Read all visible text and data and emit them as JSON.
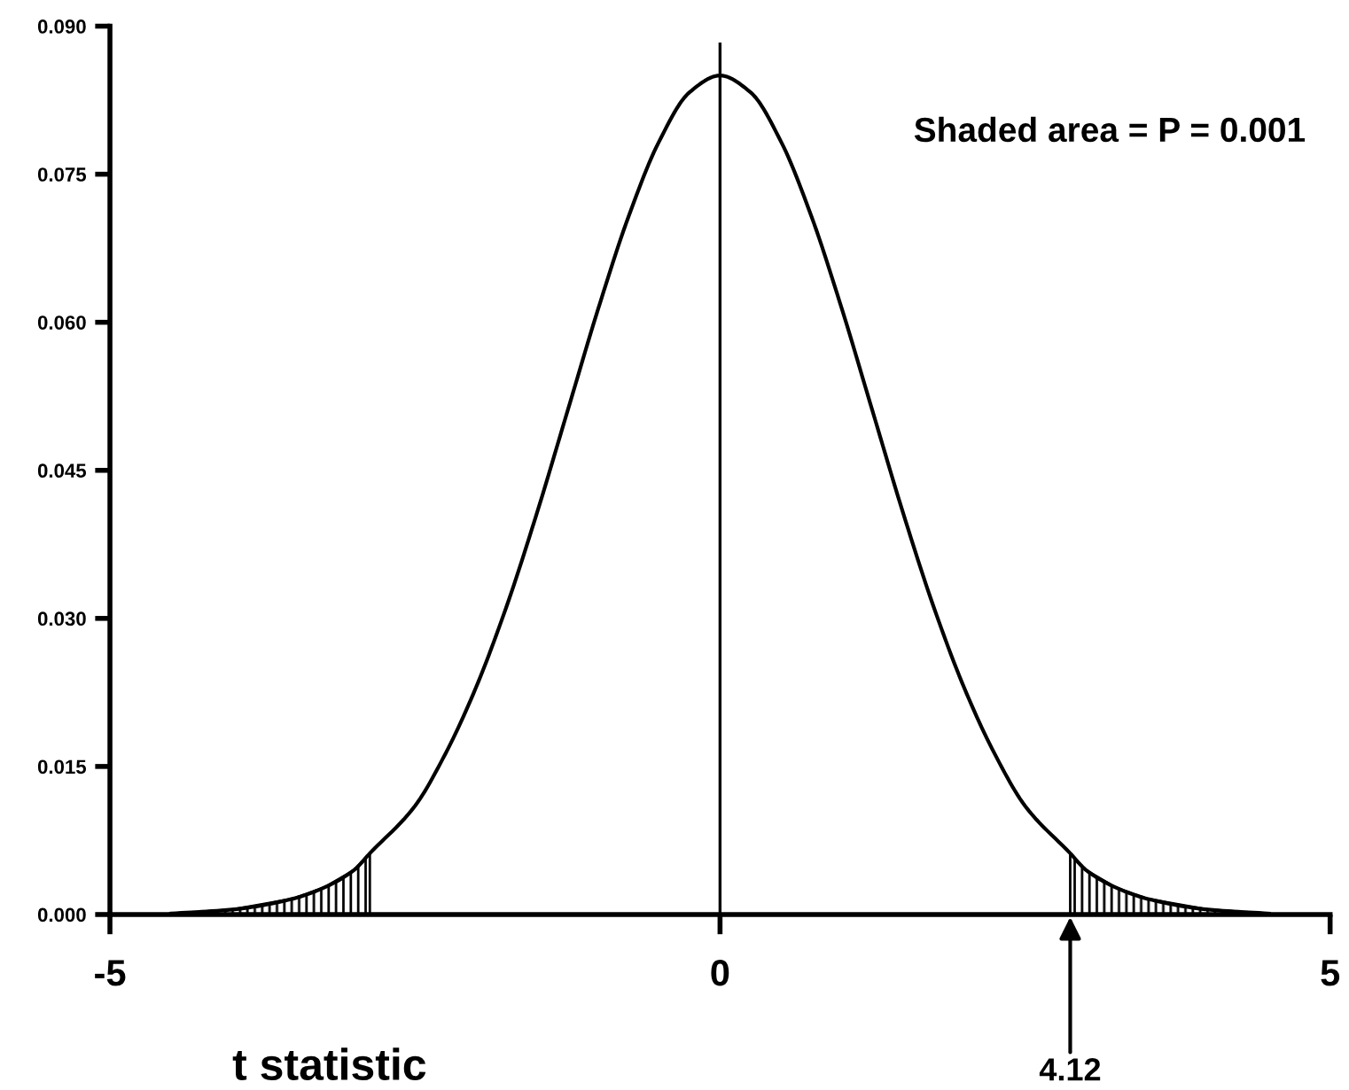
{
  "chart_data": {
    "type": "line",
    "xlabel": "t statistic",
    "xlim": [
      -5,
      5
    ],
    "xticks": [
      -5,
      0,
      5
    ],
    "ylim": [
      0,
      0.09
    ],
    "yticks": [
      {
        "value": 0,
        "label": "0.000"
      },
      {
        "value": 0.015,
        "label": "0.015"
      },
      {
        "value": 0.03,
        "label": "0.030"
      },
      {
        "value": 0.045,
        "label": "0.045"
      },
      {
        "value": 0.06,
        "label": "0.060"
      },
      {
        "value": 0.075,
        "label": "0.075"
      },
      {
        "value": 0.09,
        "label": "0.090"
      }
    ],
    "series": [
      {
        "color": "#000000",
        "x": [
          -4.5,
          -4,
          -3.5,
          -3.25,
          -3,
          -2.87,
          -2.5,
          -2.25,
          -2,
          -1.75,
          -1.5,
          -1.25,
          -1,
          -0.75,
          -0.5,
          -0.25,
          0,
          0.25,
          0.5,
          0.75,
          1,
          1.25,
          1.5,
          1.75,
          2,
          2.25,
          2.5,
          2.87,
          3,
          3.25,
          3.5,
          4,
          4.5
        ],
        "values": [
          0.0001,
          0.0005,
          0.0016,
          0.0027,
          0.0045,
          0.0062,
          0.011,
          0.0163,
          0.023,
          0.0312,
          0.0407,
          0.051,
          0.0613,
          0.0707,
          0.0783,
          0.0833,
          0.085,
          0.0833,
          0.0783,
          0.0707,
          0.0613,
          0.051,
          0.0407,
          0.0312,
          0.023,
          0.0163,
          0.011,
          0.0062,
          0.0045,
          0.0027,
          0.0016,
          0.0005,
          0.0001
        ]
      },
      {
        "type": "area",
        "color": "#000000",
        "x": [
          -4.5,
          -4,
          -3.5,
          -3.25,
          -3,
          -2.87
        ],
        "values": [
          0.0001,
          0.0005,
          0.0016,
          0.0027,
          0.0045,
          0.0062
        ]
      },
      {
        "type": "area",
        "color": "#000000",
        "x": [
          2.87,
          3,
          3.25,
          3.5,
          4,
          4.5
        ],
        "values": [
          0.0062,
          0.0045,
          0.0027,
          0.0016,
          0.0005,
          0.0001
        ]
      }
    ],
    "ref_lines": [
      {
        "axis": "x",
        "value": 0,
        "label": null,
        "color": "#000000"
      }
    ],
    "annotations": [
      "Shaded area = P = 0.001",
      {
        "text": "4.12",
        "x": 2.87,
        "y": 0
      }
    ],
    "grid": false,
    "legend": false,
    "marker": "none",
    "line_style": "solid"
  }
}
